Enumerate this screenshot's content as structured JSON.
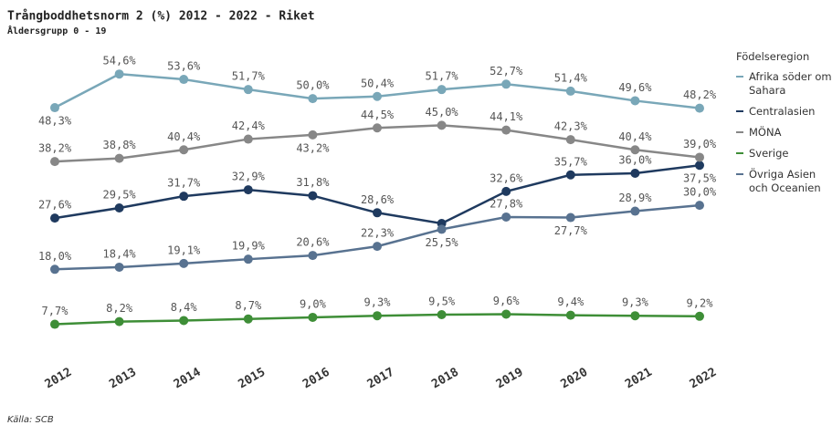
{
  "chart_data": {
    "type": "line",
    "title": "Trångboddhetsnorm 2 (%) 2012 - 2022 - Riket",
    "subtitle": "Åldersgrupp 0 - 19",
    "legend_title": "Födelseregion",
    "source": "Källa: SCB",
    "categories": [
      "2012",
      "2013",
      "2014",
      "2015",
      "2016",
      "2017",
      "2018",
      "2019",
      "2020",
      "2021",
      "2022"
    ],
    "series": [
      {
        "name": "Afrika söder om Sahara",
        "color": "#79a7b8",
        "values": [
          48.3,
          54.6,
          53.6,
          51.7,
          50.0,
          50.4,
          51.7,
          52.7,
          51.4,
          49.6,
          48.2
        ],
        "value_labels": [
          "48,3%",
          "54,6%",
          "53,6%",
          "51,7%",
          "50,0%",
          "50,4%",
          "51,7%",
          "52,7%",
          "51,4%",
          "49,6%",
          "48,2%"
        ]
      },
      {
        "name": "Centralasien",
        "color": "#1f3a5f",
        "values": [
          27.6,
          29.5,
          31.7,
          32.9,
          31.8,
          28.6,
          26.6,
          32.6,
          35.7,
          36.0,
          37.5
        ],
        "value_labels": [
          "27,6%",
          "29,5%",
          "31,7%",
          "32,9%",
          "31,8%",
          "28,6%",
          null,
          "32,6%",
          "35,7%",
          "36,0%",
          "37,5%"
        ]
      },
      {
        "name": "MÖNA",
        "color": "#878787",
        "values": [
          38.2,
          38.8,
          40.4,
          42.4,
          43.2,
          44.5,
          45.0,
          44.1,
          42.3,
          40.4,
          39.0
        ],
        "value_labels": [
          "38,2%",
          "38,8%",
          "40,4%",
          "42,4%",
          "43,2%",
          "44,5%",
          "45,0%",
          "44,1%",
          "42,3%",
          "40,4%",
          "39,0%"
        ]
      },
      {
        "name": "Sverige",
        "color": "#3e8e37",
        "values": [
          7.7,
          8.2,
          8.4,
          8.7,
          9.0,
          9.3,
          9.5,
          9.6,
          9.4,
          9.3,
          9.2
        ],
        "value_labels": [
          "7,7%",
          "8,2%",
          "8,4%",
          "8,7%",
          "9,0%",
          "9,3%",
          "9,5%",
          "9,6%",
          "9,4%",
          "9,3%",
          "9,2%"
        ]
      },
      {
        "name": "Övriga Asien och Oceanien",
        "color": "#587290",
        "values": [
          18.0,
          18.4,
          19.1,
          19.9,
          20.6,
          22.3,
          25.5,
          27.8,
          27.7,
          28.9,
          30.0
        ],
        "value_labels": [
          "18,0%",
          "18,4%",
          "19,1%",
          "19,9%",
          "20,6%",
          "22,3%",
          "25,5%",
          "27,8%",
          "27,7%",
          "28,9%",
          "30,0%"
        ]
      }
    ]
  }
}
